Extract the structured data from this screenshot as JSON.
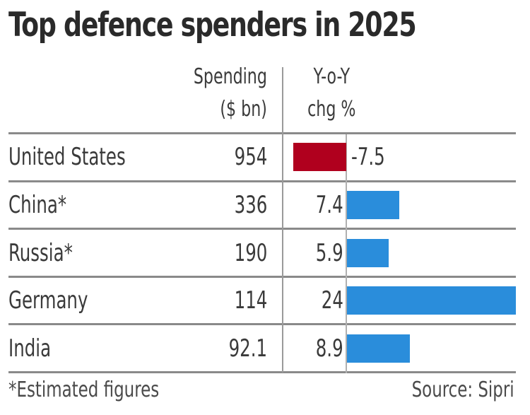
{
  "chart_data": {
    "type": "bar",
    "title": "Top defence spenders in 2025",
    "columns": {
      "spending": "Spending\n($ bn)",
      "spending_line1": "Spending",
      "spending_line2": "($ bn)",
      "yoy_line1": "Y-o-Y",
      "yoy_line2": "chg %"
    },
    "categories": [
      "United States",
      "China*",
      "Russia*",
      "Germany",
      "India"
    ],
    "series": [
      {
        "name": "Spending ($ bn)",
        "values": [
          954,
          336,
          190,
          114,
          92.1
        ],
        "labels": [
          "954",
          "336",
          "190",
          "114",
          "92.1"
        ]
      },
      {
        "name": "Y-o-Y chg %",
        "values": [
          -7.5,
          7.4,
          5.9,
          24,
          8.9
        ],
        "labels": [
          "-7.5",
          "7.4",
          "5.9",
          "24",
          "8.9"
        ]
      }
    ],
    "xlim": [
      -7.5,
      24
    ],
    "colors": {
      "positive": "#2a8ddb",
      "negative": "#b0001e",
      "grid": "#8a8a8a"
    },
    "footnote": "*Estimated figures",
    "source": "Source: Sipri",
    "grid": true
  }
}
